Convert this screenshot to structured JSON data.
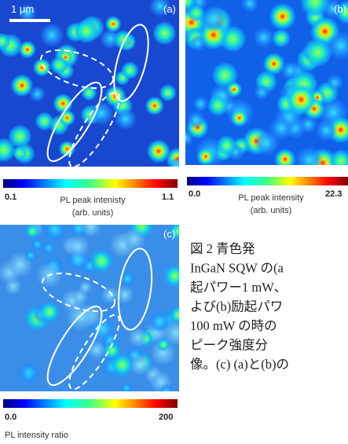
{
  "panels": [
    {
      "label": "(a)",
      "scale_bar": "1 μm",
      "colorbar": {
        "min": "0.1",
        "max": "1.1",
        "title": "PL peak intenisty",
        "units": "(arb. units)"
      }
    },
    {
      "label": "(b)",
      "colorbar": {
        "min": "0.0",
        "max": "22.3",
        "title": "PL peak intensity",
        "units": "(arb. units)"
      }
    },
    {
      "label": "(c)",
      "colorbar": {
        "min": "0.0",
        "max": "200",
        "title": "PL intensity ratio"
      }
    }
  ],
  "caption": {
    "lines": [
      "図 2 青色発",
      "InGaN SQW の(a",
      "起パワー1 mW、",
      "よび(b)励起パワ",
      "100 mW の時の",
      "ピーク強度分",
      "像。(c) (a)と(b)の"
    ]
  }
}
